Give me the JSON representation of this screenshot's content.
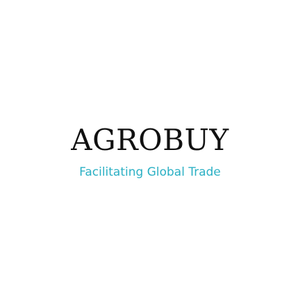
{
  "logo": {
    "brand_name": "AGROBUY",
    "tagline": "Facilitating Global Trade"
  },
  "colors": {
    "brand_text": "#111111",
    "tagline_text": "#2bb0c4",
    "background": "#ffffff"
  }
}
